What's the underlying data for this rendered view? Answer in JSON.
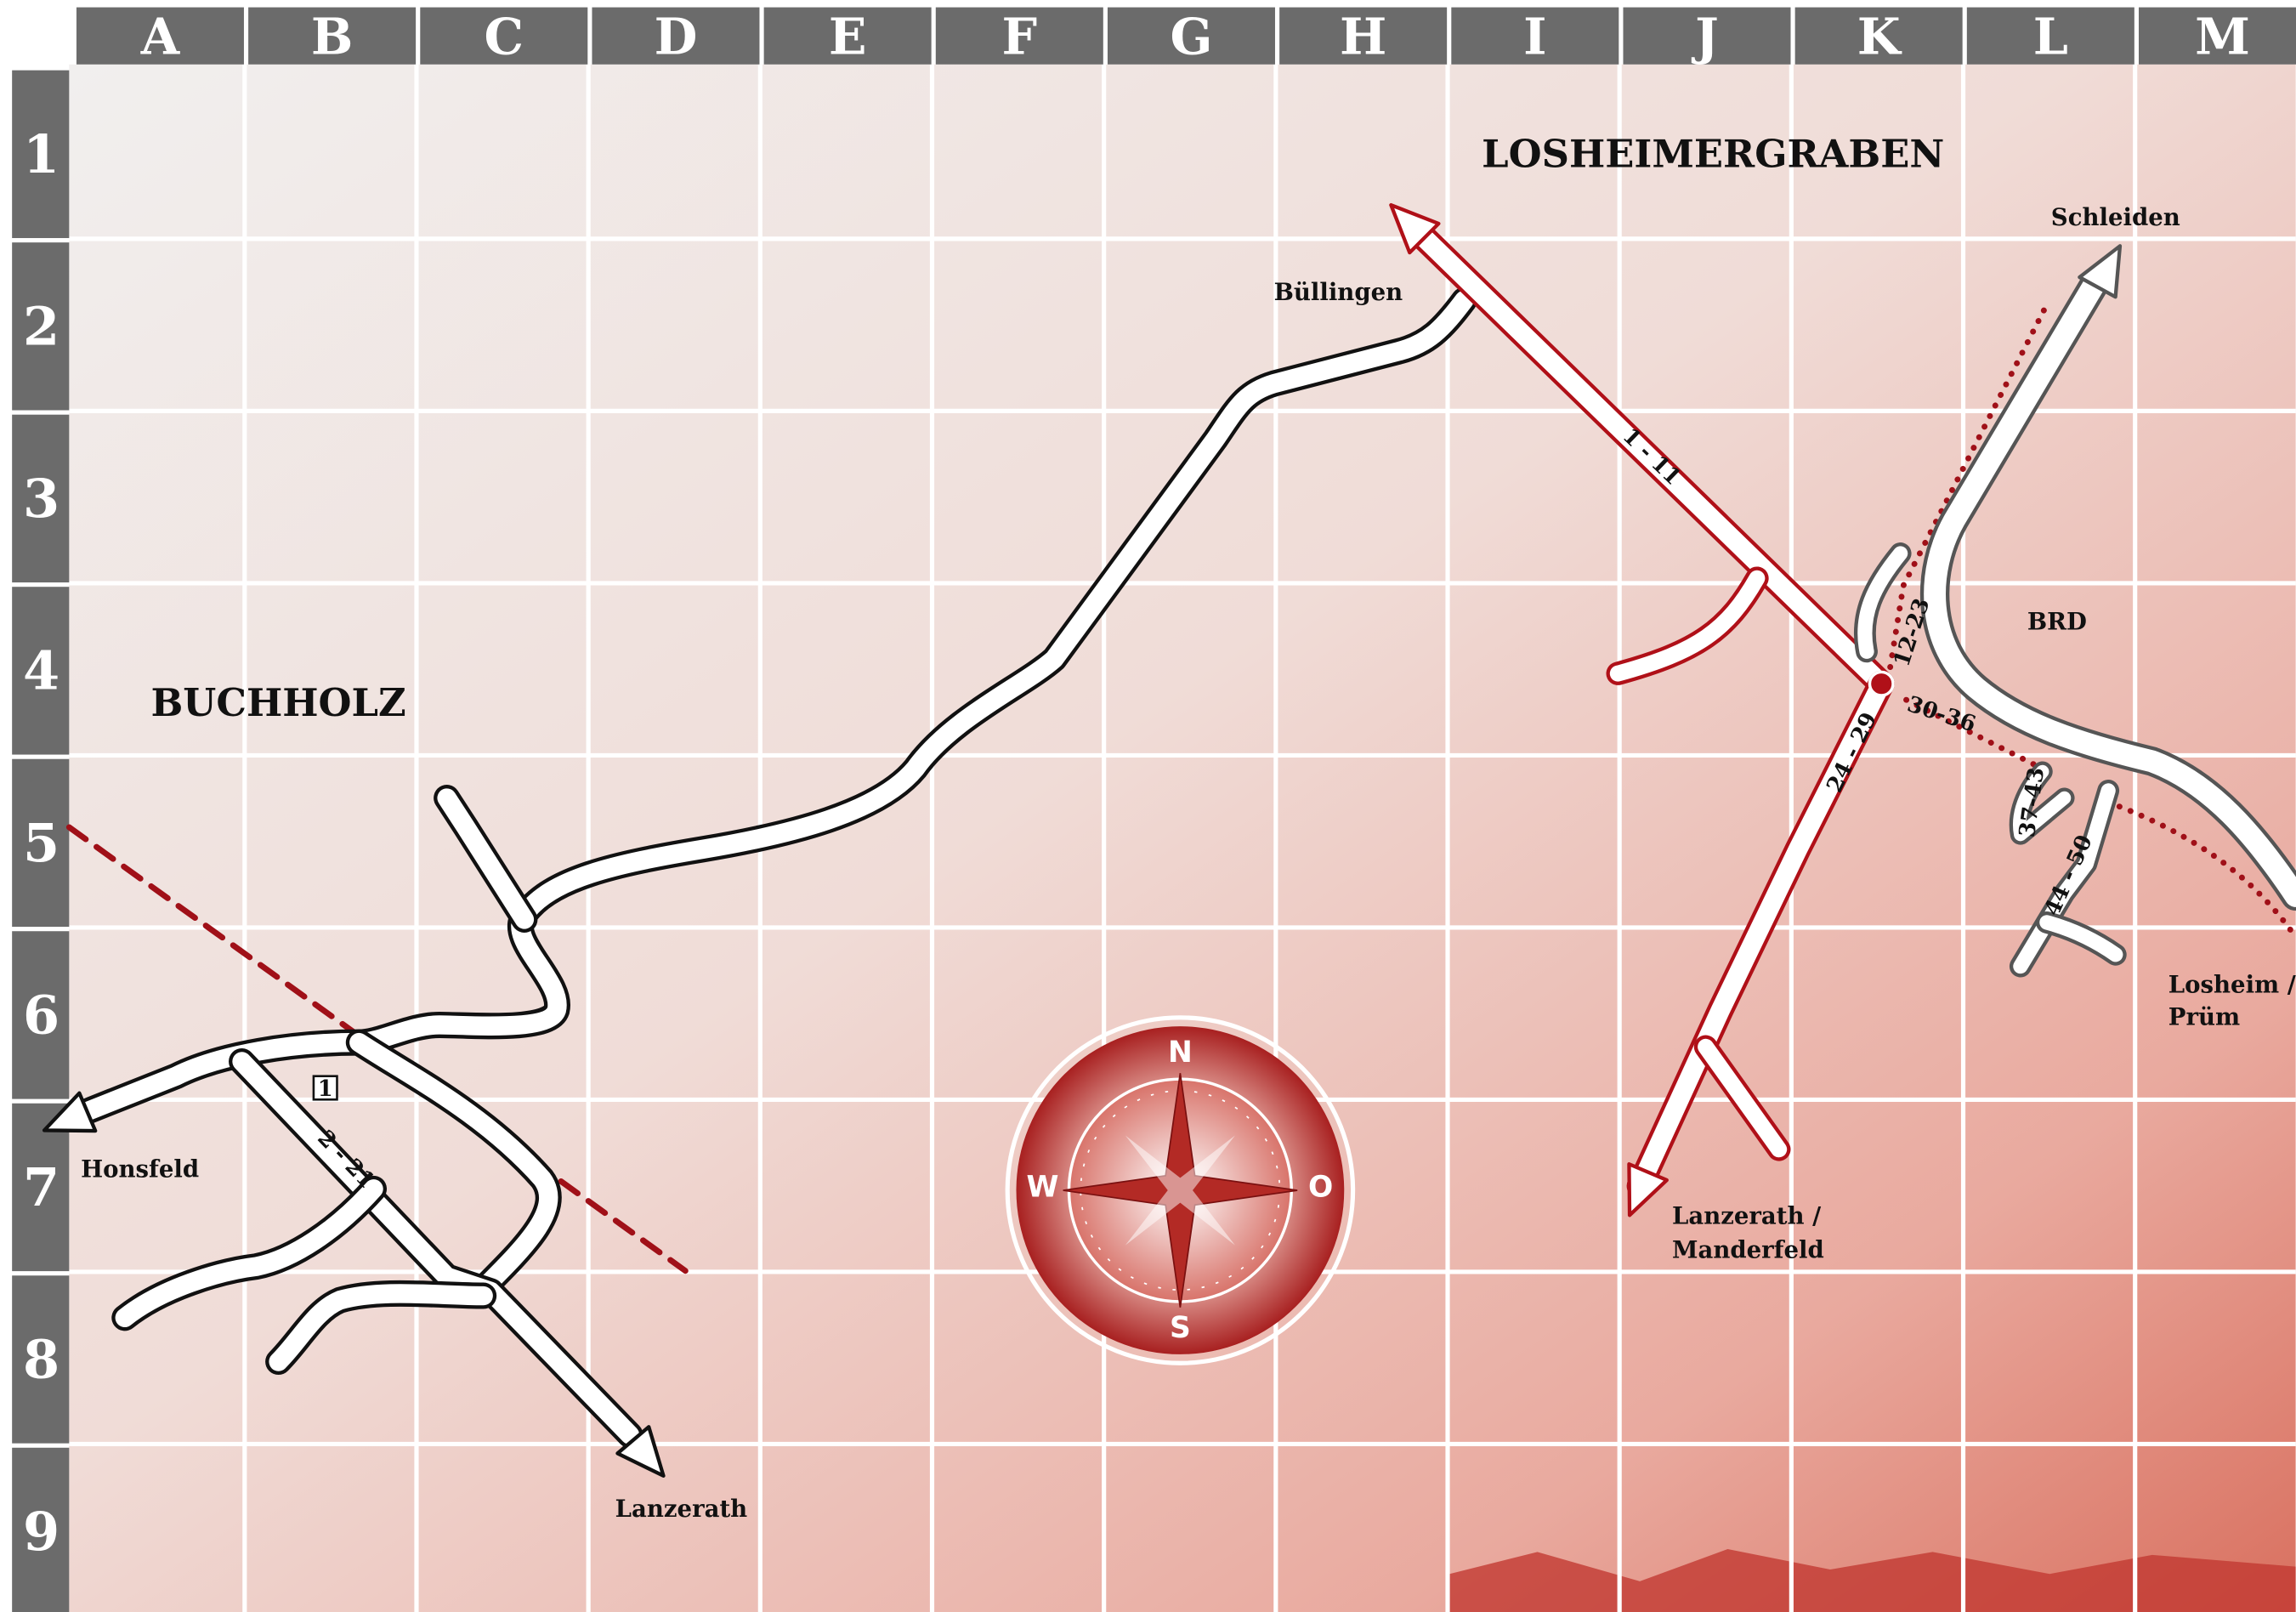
{
  "columns": [
    "A",
    "B",
    "C",
    "D",
    "E",
    "F",
    "G",
    "H",
    "I",
    "J",
    "K",
    "L",
    "M"
  ],
  "rows": [
    "1",
    "2",
    "3",
    "4",
    "5",
    "6",
    "7",
    "8",
    "9"
  ],
  "places": {
    "losheimergraben": "LOSHEIMERGRABEN",
    "buchholz": "BUCHHOLZ",
    "bullingen": "Büllingen",
    "schleiden": "Schleiden",
    "brd": "BRD",
    "honsfeld": "Honsfeld",
    "lanzerath": "Lanzerath",
    "lanzerath_manderfeld": [
      "Lanzerath /",
      "Manderfeld"
    ],
    "losheim_prum": [
      "Losheim /",
      "Prüm"
    ]
  },
  "road_labels": {
    "r1_11": "1 - 11",
    "r12_23": "12-23",
    "r30_36": "30-36",
    "r24_29": "24 - 29",
    "r37_43": "37-43",
    "r44_50": "44 - 50",
    "r2_21": "2 - 21",
    "marker": "1"
  },
  "compass": {
    "n": "N",
    "w": "W",
    "o": "O",
    "s": "S"
  }
}
